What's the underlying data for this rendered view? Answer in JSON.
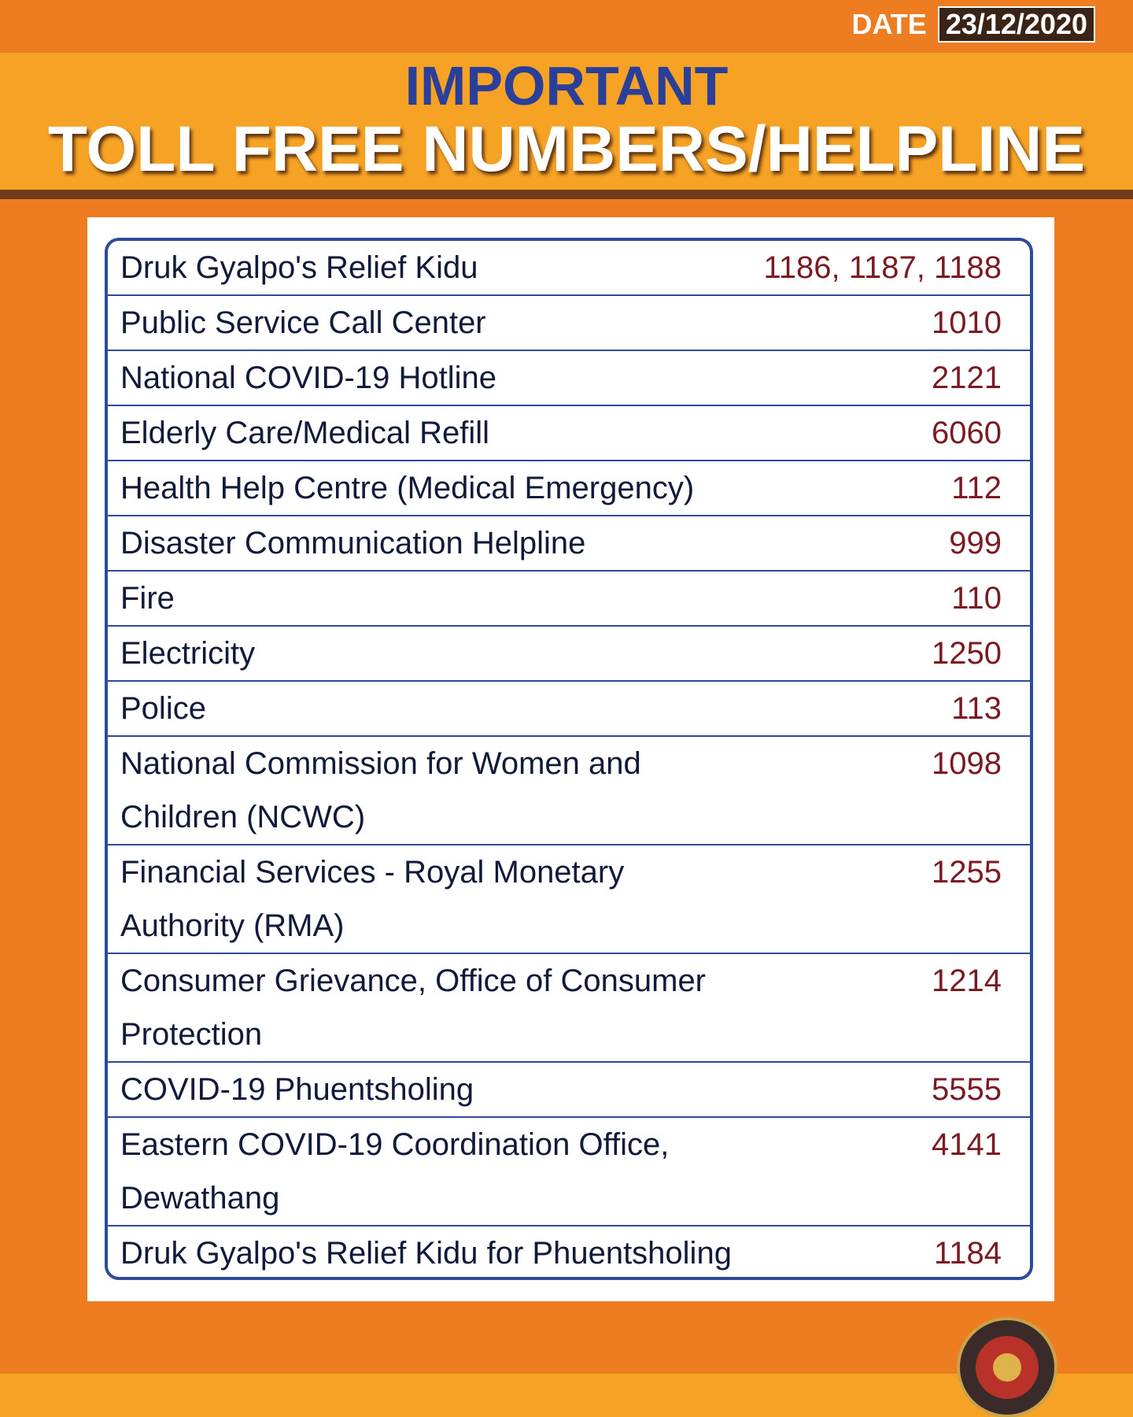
{
  "header": {
    "date_label": "DATE",
    "date": "23/12/2020",
    "title_line1": "IMPORTANT",
    "title_line2": "TOLL FREE NUMBERS/HELPLINE"
  },
  "table": {
    "rows": [
      [
        "Druk Gyalpo's Relief Kidu",
        "1186, 1187, 1188"
      ],
      [
        "Public Service Call Center",
        "1010"
      ],
      [
        "National COVID-19 Hotline",
        "2121"
      ],
      [
        "Elderly Care/Medical Refill",
        "6060"
      ],
      [
        "Health Help Centre (Medical Emergency)",
        "112"
      ],
      [
        "Disaster Communication Helpline",
        "999"
      ],
      [
        "Fire",
        "110"
      ],
      [
        "Electricity",
        "1250"
      ],
      [
        "Police",
        "113"
      ],
      [
        "National Commission for Women and Children (NCWC)",
        "1098"
      ],
      [
        "Financial Services - Royal Monetary Authority (RMA)",
        "1255"
      ],
      [
        "Consumer Grievance, Office of Consumer Protection",
        "1214"
      ],
      [
        "COVID-19 Phuentsholing",
        "5555"
      ],
      [
        "Eastern COVID-19 Coordination Office, Dewathang",
        "4141"
      ],
      [
        "Druk Gyalpo's Relief Kidu for Phuentsholing",
        "1184"
      ]
    ]
  }
}
